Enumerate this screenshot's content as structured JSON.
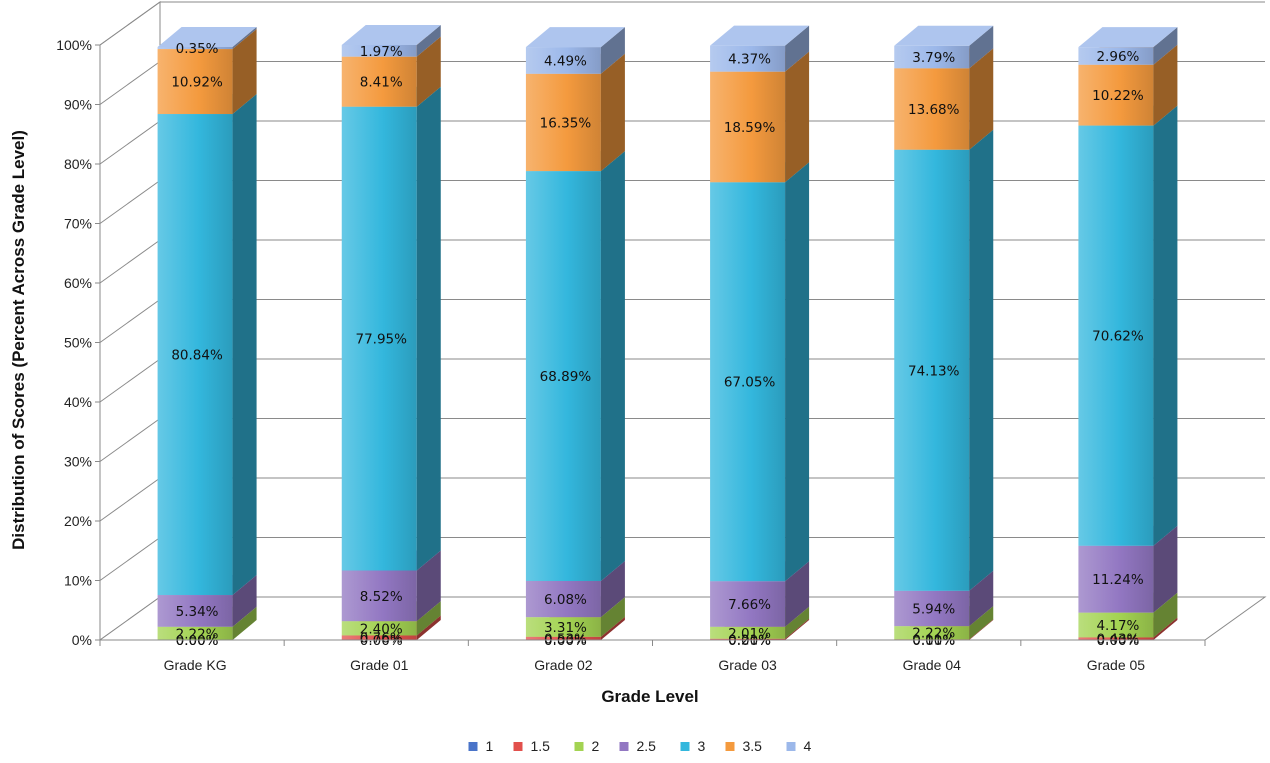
{
  "chart_data": {
    "type": "bar",
    "subtype": "stacked-3d-percent",
    "categories": [
      "Grade KG",
      "Grade 01",
      "Grade 02",
      "Grade 03",
      "Grade 04",
      "Grade 05"
    ],
    "series": [
      {
        "name": "1",
        "color": "#4a74c9",
        "values": [
          0.0,
          0.0,
          0.0,
          0.0,
          0.0,
          0.0
        ],
        "labels": [
          "0.00%",
          "0.00%",
          "0.00%",
          "0.00%",
          "0.00%",
          "0.00%"
        ]
      },
      {
        "name": "1.5",
        "color": "#e2504c",
        "values": [
          0.0,
          0.76,
          0.53,
          0.21,
          0.11,
          0.43
        ],
        "labels": [
          "0.00%",
          "0.76%",
          "0.53%",
          "0.21%",
          "0.11%",
          "0.43%"
        ]
      },
      {
        "name": "2",
        "color": "#a3d352",
        "values": [
          2.22,
          2.4,
          3.31,
          2.01,
          2.22,
          4.17
        ],
        "labels": [
          "2.22%",
          "2.40%",
          "3.31%",
          "2.01%",
          "2.22%",
          "4.17%"
        ]
      },
      {
        "name": "2.5",
        "color": "#9277c2",
        "values": [
          5.34,
          8.52,
          6.08,
          7.66,
          5.94,
          11.24
        ],
        "labels": [
          "5.34%",
          "8.52%",
          "6.08%",
          "7.66%",
          "5.94%",
          "11.24%"
        ]
      },
      {
        "name": "3",
        "color": "#33b7dd",
        "values": [
          80.84,
          77.95,
          68.89,
          67.05,
          74.13,
          70.62
        ],
        "labels": [
          "80.84%",
          "77.95%",
          "68.89%",
          "67.05%",
          "74.13%",
          "70.62%"
        ]
      },
      {
        "name": "3.5",
        "color": "#f49a3e",
        "values": [
          10.92,
          8.41,
          16.35,
          18.59,
          13.68,
          10.22
        ],
        "labels": [
          "10.92%",
          "8.41%",
          "16.35%",
          "18.59%",
          "13.68%",
          "10.22%"
        ]
      },
      {
        "name": "4",
        "color": "#9cb8ea",
        "values": [
          0.35,
          1.97,
          4.49,
          4.37,
          3.79,
          2.96
        ],
        "labels": [
          "0.35%",
          "1.97%",
          "4.49%",
          "4.37%",
          "3.79%",
          "2.96%"
        ]
      }
    ],
    "xlabel": "Grade Level",
    "ylabel": "Distribution of Scores (Percent Across Grade Level)",
    "ylim": [
      0,
      100
    ],
    "yticks": [
      "0%",
      "10%",
      "20%",
      "30%",
      "40%",
      "50%",
      "60%",
      "70%",
      "80%",
      "90%",
      "100%"
    ],
    "grid": true,
    "legend_position": "bottom"
  }
}
